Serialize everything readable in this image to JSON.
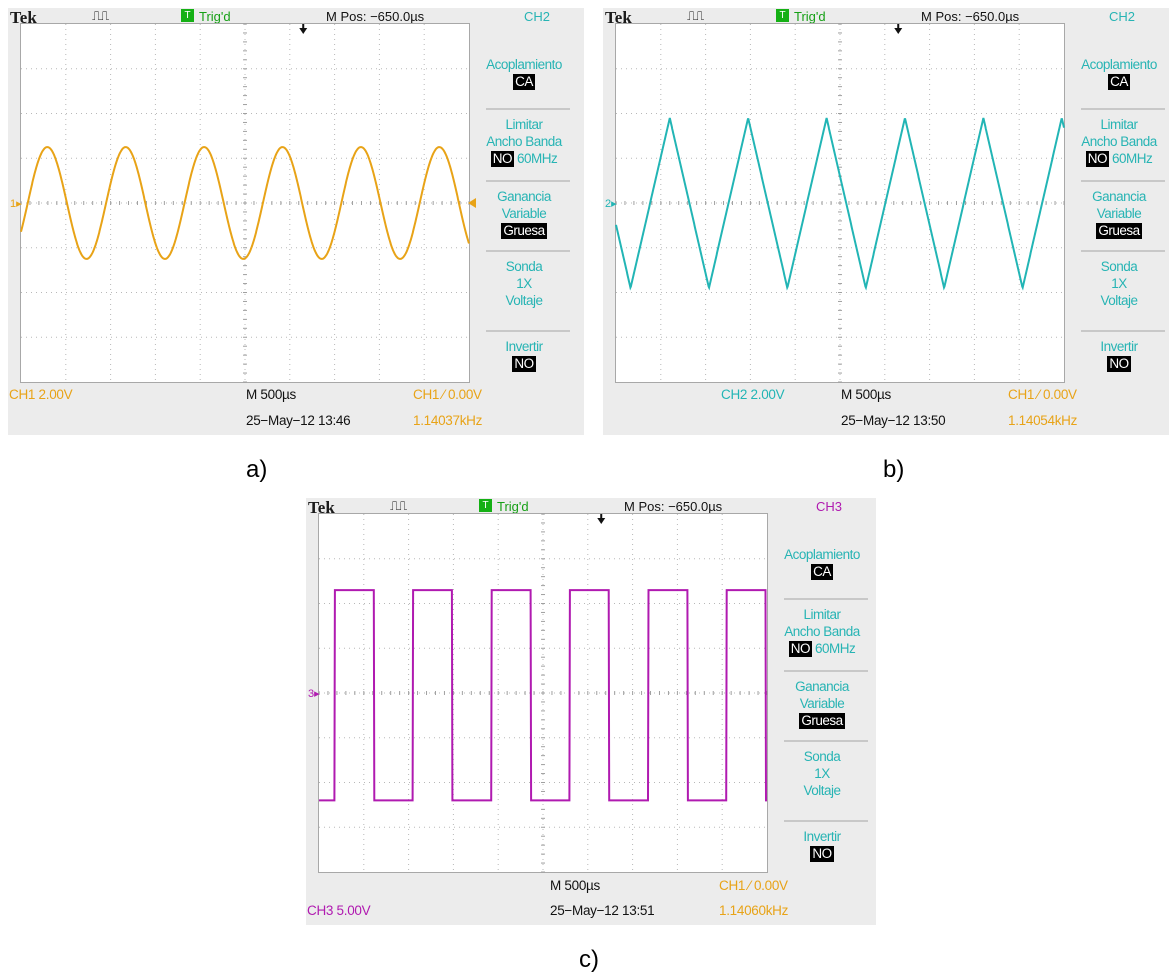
{
  "scopes": [
    {
      "id": "a",
      "brand": "Tek",
      "acq_symbol": "⎍⎍",
      "trigger_box": "T",
      "trigger_status": "Trig'd",
      "m_pos": "M Pos: −650.0µs",
      "channel_title": "CH2",
      "menu": {
        "coupling_label": "Acoplamiento",
        "coupling_value": "CA",
        "bw_label_1": "Limitar",
        "bw_label_2": "Ancho Banda",
        "bw_value": "NO",
        "bw_freq": "60MHz",
        "gain_label_1": "Ganancia",
        "gain_label_2": "Variable",
        "gain_value": "Gruesa",
        "probe_label": "Sonda",
        "probe_value": "1X",
        "probe_type": "Voltaje",
        "invert_label": "Invertir",
        "invert_value": "NO"
      },
      "channel_scale": "CH1  2.00V",
      "timebase": "M 500µs",
      "trigger_info": "CH1  ⁄  0.00V",
      "date": "25−May−12 13:46",
      "frequency": "1.14037kHz",
      "ch_marker": "1",
      "caption": "a)",
      "trace_color": "#e8a317"
    },
    {
      "id": "b",
      "brand": "Tek",
      "acq_symbol": "⎍⎍",
      "trigger_box": "T",
      "trigger_status": "Trig'd",
      "m_pos": "M Pos: −650.0µs",
      "channel_title": "CH2",
      "menu": {
        "coupling_label": "Acoplamiento",
        "coupling_value": "CA",
        "bw_label_1": "Limitar",
        "bw_label_2": "Ancho Banda",
        "bw_value": "NO",
        "bw_freq": "60MHz",
        "gain_label_1": "Ganancia",
        "gain_label_2": "Variable",
        "gain_value": "Gruesa",
        "probe_label": "Sonda",
        "probe_value": "1X",
        "probe_type": "Voltaje",
        "invert_label": "Invertir",
        "invert_value": "NO"
      },
      "channel_scale": "CH2  2.00V",
      "timebase": "M 500µs",
      "trigger_info": "CH1  ⁄  0.00V",
      "date": "25−May−12 13:50",
      "frequency": "1.14054kHz",
      "ch_marker": "2",
      "caption": "b)",
      "trace_color": "#22b5b5"
    },
    {
      "id": "c",
      "brand": "Tek",
      "acq_symbol": "⎍⎍",
      "trigger_box": "T",
      "trigger_status": "Trig'd",
      "m_pos": "M Pos: −650.0µs",
      "channel_title": "CH3",
      "menu": {
        "coupling_label": "Acoplamiento",
        "coupling_value": "CA",
        "bw_label_1": "Limitar",
        "bw_label_2": "Ancho Banda",
        "bw_value": "NO",
        "bw_freq": "60MHz",
        "gain_label_1": "Ganancia",
        "gain_label_2": "Variable",
        "gain_value": "Gruesa",
        "probe_label": "Sonda",
        "probe_value": "1X",
        "probe_type": "Voltaje",
        "invert_label": "Invertir",
        "invert_value": "NO"
      },
      "channel_scale": "CH3  5.00V",
      "timebase": "M 500µs",
      "trigger_info": "CH1  ⁄  0.00V",
      "date": "25−May−12 13:51",
      "frequency": "1.14060kHz",
      "ch_marker": "3",
      "caption": "c)",
      "trace_color": "#b01ab0"
    }
  ],
  "colors": {
    "menu_text": "#27b4b4",
    "ch1": "#e8a317",
    "ch2": "#22b5b5",
    "ch3": "#b01ab0",
    "trig_green": "#14b014"
  },
  "chart_data": [
    {
      "type": "line",
      "title": "",
      "waveform": "sine",
      "channel": "CH1",
      "x_unit": "div (500 µs/div)",
      "y_unit": "div (2.00 V/div)",
      "xlim": [
        0,
        10
      ],
      "ylim": [
        -4,
        4
      ],
      "grid": true,
      "period_div": 1.75,
      "amplitude_div": 1.25,
      "frequency_khz": 1.14037
    },
    {
      "type": "line",
      "title": "",
      "waveform": "triangle",
      "channel": "CH2",
      "x_unit": "div (500 µs/div)",
      "y_unit": "div (2.00 V/div)",
      "xlim": [
        0,
        10
      ],
      "ylim": [
        -4,
        4
      ],
      "grid": true,
      "period_div": 1.75,
      "amplitude_div": 1.9,
      "frequency_khz": 1.14054
    },
    {
      "type": "line",
      "title": "",
      "waveform": "square",
      "channel": "CH3",
      "x_unit": "div (500 µs/div)",
      "y_unit": "div (5.00 V/div)",
      "xlim": [
        0,
        10
      ],
      "ylim": [
        -4,
        4
      ],
      "grid": true,
      "period_div": 1.75,
      "high_div": 2.3,
      "low_div": -2.4,
      "frequency_khz": 1.1406
    }
  ]
}
